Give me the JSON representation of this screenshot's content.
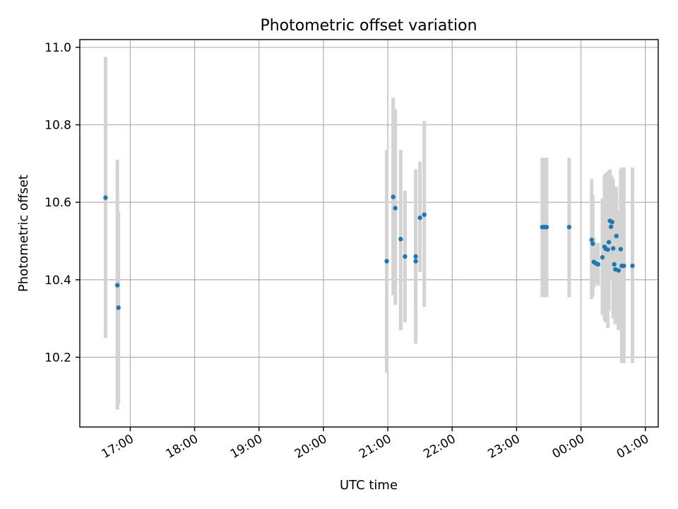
{
  "chart_data": {
    "type": "scatter",
    "title": "Photometric offset variation",
    "xlabel": "UTC time",
    "ylabel": "Photometric offset",
    "x_is_time": true,
    "xlim": [
      "16:13",
      "01:12"
    ],
    "ylim": [
      10.02,
      11.02
    ],
    "x_ticks": [
      {
        "label": "17:00",
        "time": "17:00"
      },
      {
        "label": "18:00",
        "time": "18:00"
      },
      {
        "label": "19:00",
        "time": "19:00"
      },
      {
        "label": "20:00",
        "time": "20:00"
      },
      {
        "label": "21:00",
        "time": "21:00"
      },
      {
        "label": "22:00",
        "time": "22:00"
      },
      {
        "label": "23:00",
        "time": "23:00"
      },
      {
        "label": "00:00",
        "time": "00:00"
      },
      {
        "label": "01:00",
        "time": "01:00"
      }
    ],
    "y_ticks": [
      10.2,
      10.4,
      10.6,
      10.8,
      11.0
    ],
    "y_tick_labels": [
      "10.2",
      "10.4",
      "10.6",
      "10.8",
      "11.0"
    ],
    "grid": true,
    "series": [
      {
        "color": "#1f77b4",
        "error_color": "#d3d3d3",
        "points": [
          {
            "time": "16:37",
            "y": 10.612,
            "lo": 10.25,
            "hi": 10.975
          },
          {
            "time": "16:48",
            "y": 10.386,
            "lo": 10.065,
            "hi": 10.71
          },
          {
            "time": "16:49",
            "y": 10.328,
            "lo": 10.08,
            "hi": 10.575
          },
          {
            "time": "20:59",
            "y": 10.448,
            "lo": 10.16,
            "hi": 10.735
          },
          {
            "time": "21:05",
            "y": 10.614,
            "lo": 10.36,
            "hi": 10.87
          },
          {
            "time": "21:07",
            "y": 10.585,
            "lo": 10.335,
            "hi": 10.84
          },
          {
            "time": "21:12",
            "y": 10.505,
            "lo": 10.27,
            "hi": 10.735
          },
          {
            "time": "21:16",
            "y": 10.46,
            "lo": 10.29,
            "hi": 10.63
          },
          {
            "time": "21:26",
            "y": 10.46,
            "lo": 10.235,
            "hi": 10.685
          },
          {
            "time": "21:26",
            "y": 10.448,
            "lo": 10.34,
            "hi": 10.56
          },
          {
            "time": "21:30",
            "y": 10.56,
            "lo": 10.42,
            "hi": 10.705
          },
          {
            "time": "21:34",
            "y": 10.568,
            "lo": 10.33,
            "hi": 10.81
          },
          {
            "time": "23:24",
            "y": 10.536,
            "lo": 10.355,
            "hi": 10.715
          },
          {
            "time": "23:26",
            "y": 10.536,
            "lo": 10.355,
            "hi": 10.715
          },
          {
            "time": "23:28",
            "y": 10.536,
            "lo": 10.355,
            "hi": 10.715
          },
          {
            "time": "23:49",
            "y": 10.536,
            "lo": 10.355,
            "hi": 10.715
          },
          {
            "time": "00:10",
            "y": 10.503,
            "lo": 10.35,
            "hi": 10.66
          },
          {
            "time": "00:11",
            "y": 10.493,
            "lo": 10.36,
            "hi": 10.62
          },
          {
            "time": "00:12",
            "y": 10.446,
            "lo": 10.38,
            "hi": 10.51
          },
          {
            "time": "00:14",
            "y": 10.442,
            "lo": 10.39,
            "hi": 10.495
          },
          {
            "time": "00:16",
            "y": 10.44,
            "lo": 10.385,
            "hi": 10.495
          },
          {
            "time": "00:20",
            "y": 10.458,
            "lo": 10.31,
            "hi": 10.61
          },
          {
            "time": "00:22",
            "y": 10.485,
            "lo": 10.295,
            "hi": 10.67
          },
          {
            "time": "00:23",
            "y": 10.48,
            "lo": 10.29,
            "hi": 10.675
          },
          {
            "time": "00:25",
            "y": 10.478,
            "lo": 10.275,
            "hi": 10.68
          },
          {
            "time": "00:26",
            "y": 10.497,
            "lo": 10.32,
            "hi": 10.675
          },
          {
            "time": "00:27",
            "y": 10.552,
            "lo": 10.42,
            "hi": 10.685
          },
          {
            "time": "00:28",
            "y": 10.537,
            "lo": 10.4,
            "hi": 10.67
          },
          {
            "time": "00:29",
            "y": 10.549,
            "lo": 10.43,
            "hi": 10.665
          },
          {
            "time": "00:30",
            "y": 10.481,
            "lo": 10.3,
            "hi": 10.66
          },
          {
            "time": "00:31",
            "y": 10.44,
            "lo": 10.35,
            "hi": 10.53
          },
          {
            "time": "00:32",
            "y": 10.427,
            "lo": 10.285,
            "hi": 10.57
          },
          {
            "time": "00:33",
            "y": 10.513,
            "lo": 10.39,
            "hi": 10.64
          },
          {
            "time": "00:35",
            "y": 10.424,
            "lo": 10.27,
            "hi": 10.58
          },
          {
            "time": "00:37",
            "y": 10.479,
            "lo": 10.275,
            "hi": 10.685
          },
          {
            "time": "00:38",
            "y": 10.436,
            "lo": 10.185,
            "hi": 10.69
          },
          {
            "time": "00:40",
            "y": 10.436,
            "lo": 10.185,
            "hi": 10.69
          },
          {
            "time": "00:48",
            "y": 10.436,
            "lo": 10.185,
            "hi": 10.69
          }
        ]
      }
    ]
  }
}
